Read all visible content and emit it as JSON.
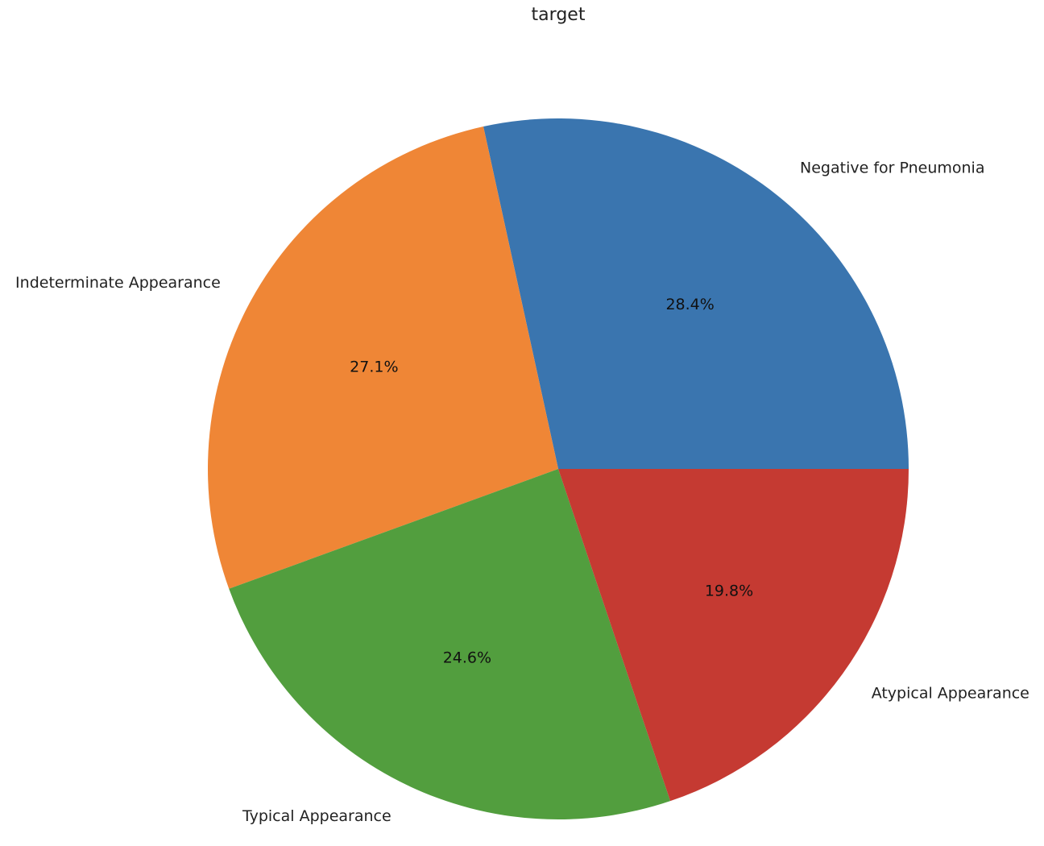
{
  "chart_data": {
    "type": "pie",
    "title": "target",
    "start_angle_deg": 0,
    "direction": "counterclockwise",
    "slices": [
      {
        "label": "Negative for Pneumonia",
        "value": 28.4,
        "pct_text": "28.4%",
        "color": "#3A75AF"
      },
      {
        "label": "Indeterminate Appearance",
        "value": 27.1,
        "pct_text": "27.1%",
        "color": "#EF8636"
      },
      {
        "label": "Typical Appearance",
        "value": 24.6,
        "pct_text": "24.6%",
        "color": "#529E3E"
      },
      {
        "label": "Atypical Appearance",
        "value": 19.8,
        "pct_text": "19.8%",
        "color": "#C53A32"
      }
    ]
  }
}
